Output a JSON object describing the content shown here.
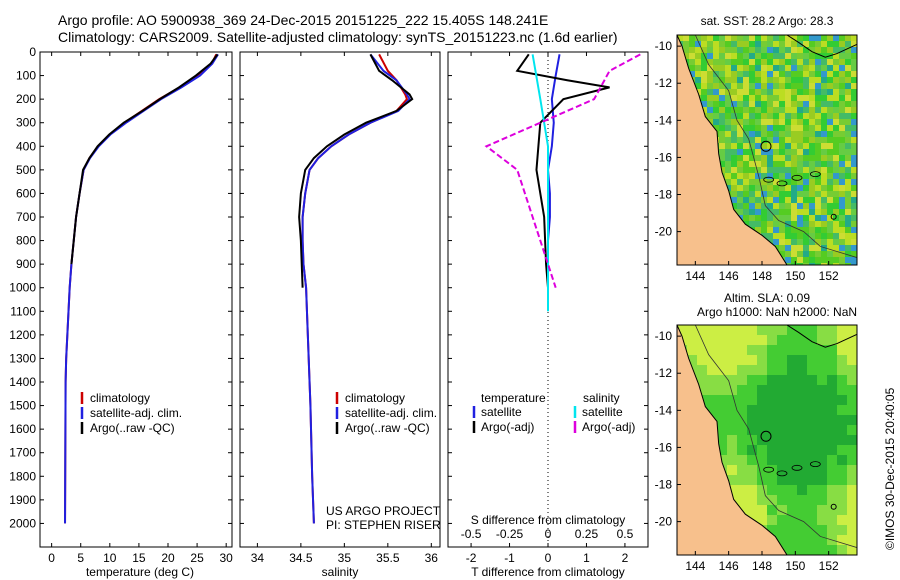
{
  "header": {
    "line1": "Argo profile: AO 5900938_369 24-Dec-2015 20151225_222 15.405S 148.241E",
    "line2": "Climatology: CARS2009. Satellite-adjusted climatology: synTS_20151223.nc (1.6d earlier)"
  },
  "colors": {
    "clim": "#cc0000",
    "sat": "#2020e0",
    "argo": "#000000",
    "sal_sat": "#00e5ee",
    "sal_argo": "#dd00dd",
    "land": "#f7c08c"
  },
  "chart_data": [
    {
      "type": "line",
      "name": "temperature",
      "xlabel": "temperature (deg C)",
      "ylabel": "",
      "xlim": [
        -2,
        31
      ],
      "ylim": [
        2100,
        0
      ],
      "xticks": [
        0,
        5,
        10,
        15,
        20,
        25,
        30
      ],
      "yticks": [
        0,
        100,
        200,
        300,
        400,
        500,
        600,
        700,
        800,
        900,
        1000,
        1100,
        1200,
        1300,
        1400,
        1500,
        1600,
        1700,
        1800,
        1900,
        2000
      ],
      "series": [
        {
          "name": "climatology",
          "color": "#cc0000",
          "x": [
            28.3,
            27.5,
            25,
            22,
            18.5,
            15.5,
            12.5,
            10,
            8,
            6.5,
            5.5,
            4.8,
            4.2,
            3.8,
            3.4,
            3.1,
            2.9,
            2.7,
            2.5,
            2.4,
            2.3
          ],
          "y": [
            10,
            50,
            100,
            150,
            200,
            250,
            300,
            350,
            400,
            450,
            500,
            600,
            700,
            800,
            900,
            1000,
            1100,
            1200,
            1300,
            1400,
            2000
          ]
        },
        {
          "name": "satellite-adj. clim.",
          "color": "#2020e0",
          "x": [
            28.6,
            27.6,
            25.5,
            22.3,
            18.8,
            15.8,
            12.8,
            10.1,
            8.1,
            6.6,
            5.5,
            4.8,
            4.2,
            3.8,
            3.4,
            3.1,
            2.9,
            2.7,
            2.5,
            2.4,
            2.3
          ],
          "y": [
            10,
            50,
            100,
            150,
            200,
            250,
            300,
            350,
            400,
            450,
            500,
            600,
            700,
            800,
            900,
            1000,
            1100,
            1200,
            1300,
            1400,
            2000
          ]
        },
        {
          "name": "Argo(..raw -QC)",
          "color": "#000000",
          "x": [
            28.5,
            27.3,
            24.8,
            21.9,
            18.6,
            15.6,
            12.4,
            9.9,
            7.9,
            6.5,
            5.4,
            4.8,
            4.2,
            3.8,
            3.4
          ],
          "y": [
            10,
            50,
            100,
            150,
            200,
            250,
            300,
            350,
            400,
            450,
            500,
            600,
            700,
            800,
            900
          ]
        }
      ],
      "legend": [
        "climatology",
        "satellite-adj. clim.",
        "Argo(..raw -QC)"
      ]
    },
    {
      "type": "line",
      "name": "salinity",
      "xlabel": "salinity",
      "xlim": [
        33.8,
        36.1
      ],
      "ylim": [
        2100,
        0
      ],
      "xticks": [
        34,
        34.5,
        35,
        35.5,
        36
      ],
      "xticklabels": [
        "34",
        "34.5",
        "35",
        "35.5",
        "36"
      ],
      "series": [
        {
          "name": "climatology",
          "color": "#cc0000",
          "x": [
            35.4,
            35.5,
            35.6,
            35.7,
            35.72,
            35.6,
            35.3,
            35.05,
            34.85,
            34.7,
            34.6,
            34.55,
            34.52,
            34.52,
            34.53,
            34.56,
            34.58,
            34.61,
            34.63,
            34.65
          ],
          "y": [
            10,
            80,
            120,
            180,
            200,
            250,
            300,
            350,
            400,
            450,
            500,
            600,
            700,
            800,
            900,
            1000,
            1200,
            1500,
            1800,
            2000
          ]
        },
        {
          "name": "satellite-adj. clim.",
          "color": "#2020e0",
          "x": [
            35.3,
            35.45,
            35.6,
            35.72,
            35.75,
            35.62,
            35.3,
            35.05,
            34.85,
            34.7,
            34.6,
            34.55,
            34.52,
            34.52,
            34.53,
            34.56,
            34.58,
            34.61,
            34.63,
            34.65
          ],
          "y": [
            10,
            80,
            120,
            180,
            200,
            250,
            300,
            350,
            400,
            450,
            500,
            600,
            700,
            800,
            900,
            1000,
            1200,
            1500,
            1800,
            2000
          ]
        },
        {
          "name": "Argo(..raw -QC)",
          "color": "#000000",
          "x": [
            35.3,
            35.4,
            35.55,
            35.75,
            35.78,
            35.6,
            35.25,
            35.0,
            34.8,
            34.65,
            34.55,
            34.5,
            34.48,
            34.5,
            34.52
          ],
          "y": [
            10,
            80,
            120,
            180,
            200,
            250,
            300,
            350,
            400,
            450,
            500,
            600,
            700,
            800,
            1000
          ]
        }
      ],
      "legend": [
        "climatology",
        "satellite-adj. clim.",
        "Argo(..raw -QC)"
      ],
      "annotation": [
        "US ARGO PROJECT",
        "PI: STEPHEN RISER"
      ]
    },
    {
      "type": "line",
      "name": "difference",
      "xlabel": "T difference from climatology",
      "xlabel_top": "S difference from climatology",
      "xlim": [
        -2.6,
        2.6
      ],
      "ylim": [
        2100,
        0
      ],
      "xticks": [
        -2,
        -1,
        0,
        1,
        2
      ],
      "xticks_s": [
        -0.5,
        -0.25,
        0,
        0.25,
        0.5
      ],
      "xticklabels_s": [
        "-0.5",
        "-0.25",
        "0",
        "0.25",
        "0.5"
      ],
      "series": [
        {
          "name": "T satellite",
          "color": "#2020e0",
          "x": [
            0.3,
            0.2,
            0.1,
            0.15,
            0.1,
            0.0,
            0.05,
            0.05,
            0.0,
            0.0
          ],
          "y": [
            10,
            100,
            200,
            300,
            400,
            500,
            600,
            700,
            800,
            1000
          ]
        },
        {
          "name": "T Argo(-adj)",
          "color": "#000000",
          "x": [
            -0.5,
            -0.8,
            0.5,
            1.6,
            0.4,
            -0.2,
            -0.3,
            -0.1,
            -0.05,
            0.0
          ],
          "y": [
            10,
            80,
            120,
            150,
            200,
            300,
            500,
            700,
            900,
            1000
          ]
        },
        {
          "name": "S satellite",
          "color": "#00e5ee",
          "x": [
            -0.1,
            -0.05,
            0.0,
            0.0,
            0.0,
            0.0
          ],
          "y": [
            10,
            200,
            400,
            600,
            800,
            1100
          ]
        },
        {
          "name": "S Argo(-adj)",
          "color": "#dd00dd",
          "x": [
            0.6,
            0.4,
            0.3,
            -0.4,
            -0.2,
            -0.1,
            0.0,
            0.05
          ],
          "y": [
            10,
            80,
            200,
            400,
            500,
            700,
            900,
            1000
          ]
        }
      ],
      "legend_left_title": "temperature",
      "legend_right_title": "salinity",
      "legend_left": [
        "satellite",
        "Argo(-adj)"
      ],
      "legend_right": [
        "satellite",
        "Argo(-adj)"
      ]
    }
  ],
  "map_top": {
    "title": "sat. SST: 28.2 Argo: 28.3",
    "xticks": [
      "144",
      "146",
      "148",
      "150",
      "152"
    ],
    "yticks": [
      "-10",
      "-12",
      "-14",
      "-16",
      "-18",
      "-20"
    ]
  },
  "map_bottom": {
    "title1": "Altim. SLA: 0.09",
    "title2": "Argo h1000: NaN h2000: NaN",
    "xticks": [
      "144",
      "146",
      "148",
      "150",
      "152"
    ],
    "yticks": [
      "-10",
      "-12",
      "-14",
      "-16",
      "-18",
      "-20"
    ]
  },
  "stamp": "©IMOS 30-Dec-2015 20:40:05"
}
